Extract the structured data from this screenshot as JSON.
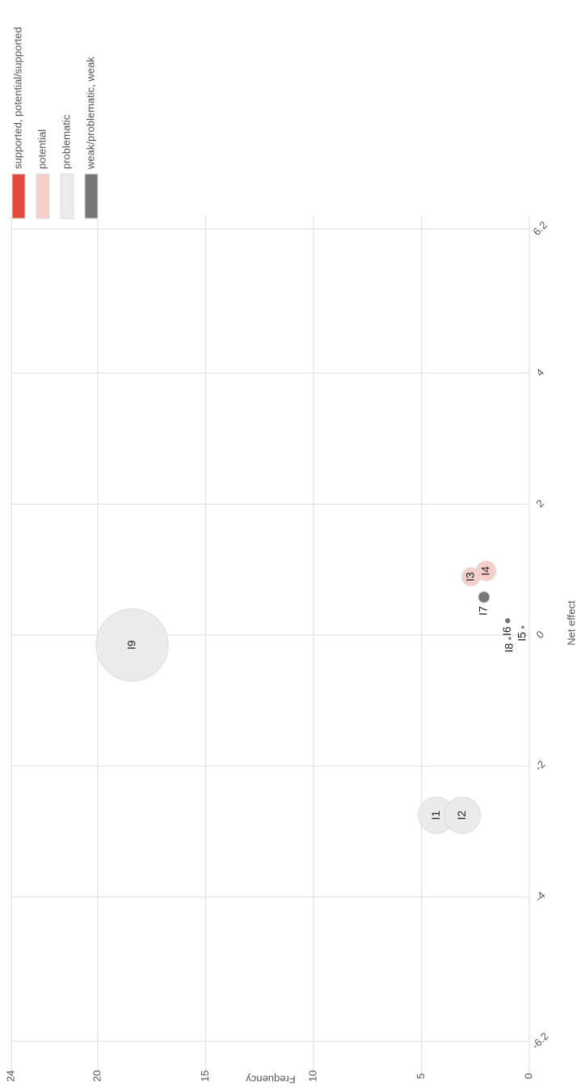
{
  "chart_data": {
    "type": "bubble",
    "x_label": "Net effect",
    "y_label": "Frequency",
    "xlim": [
      -6.2,
      6.2
    ],
    "xticks": [
      -6.2,
      -4,
      -2,
      0,
      2,
      4,
      6.2
    ],
    "ylim": [
      0,
      24
    ],
    "yticks": [
      0,
      5,
      10,
      15,
      20,
      24
    ],
    "grid": true,
    "legend": "top-right",
    "series": [
      {
        "name": "supported, potential/supported",
        "color": "#e14b3b",
        "labels": [],
        "x": [],
        "y": [],
        "size": []
      },
      {
        "name": "potential",
        "color": "#f6cfcb",
        "labels": [
          "I3",
          "I4"
        ],
        "x": [
          0.89,
          0.98
        ],
        "y": [
          2.7,
          2.0
        ],
        "size": [
          1.3,
          1.5
        ]
      },
      {
        "name": "problematic",
        "color": "#ebebeb",
        "labels": [
          "I1",
          "I2",
          "I9"
        ],
        "x": [
          -2.75,
          -2.75,
          -0.15
        ],
        "y": [
          4.3,
          3.1,
          18.4
        ],
        "size": [
          5,
          5,
          20
        ]
      },
      {
        "name": "weak/problematic, weak",
        "color": "#777777",
        "labels": [
          "I5",
          "I6",
          "I7",
          "I8"
        ],
        "x": [
          0.12,
          0.22,
          0.58,
          -0.05
        ],
        "y": [
          0.3,
          1.0,
          2.1,
          0.9
        ],
        "size": [
          0.03,
          0.1,
          0.5,
          0.03
        ]
      }
    ]
  }
}
